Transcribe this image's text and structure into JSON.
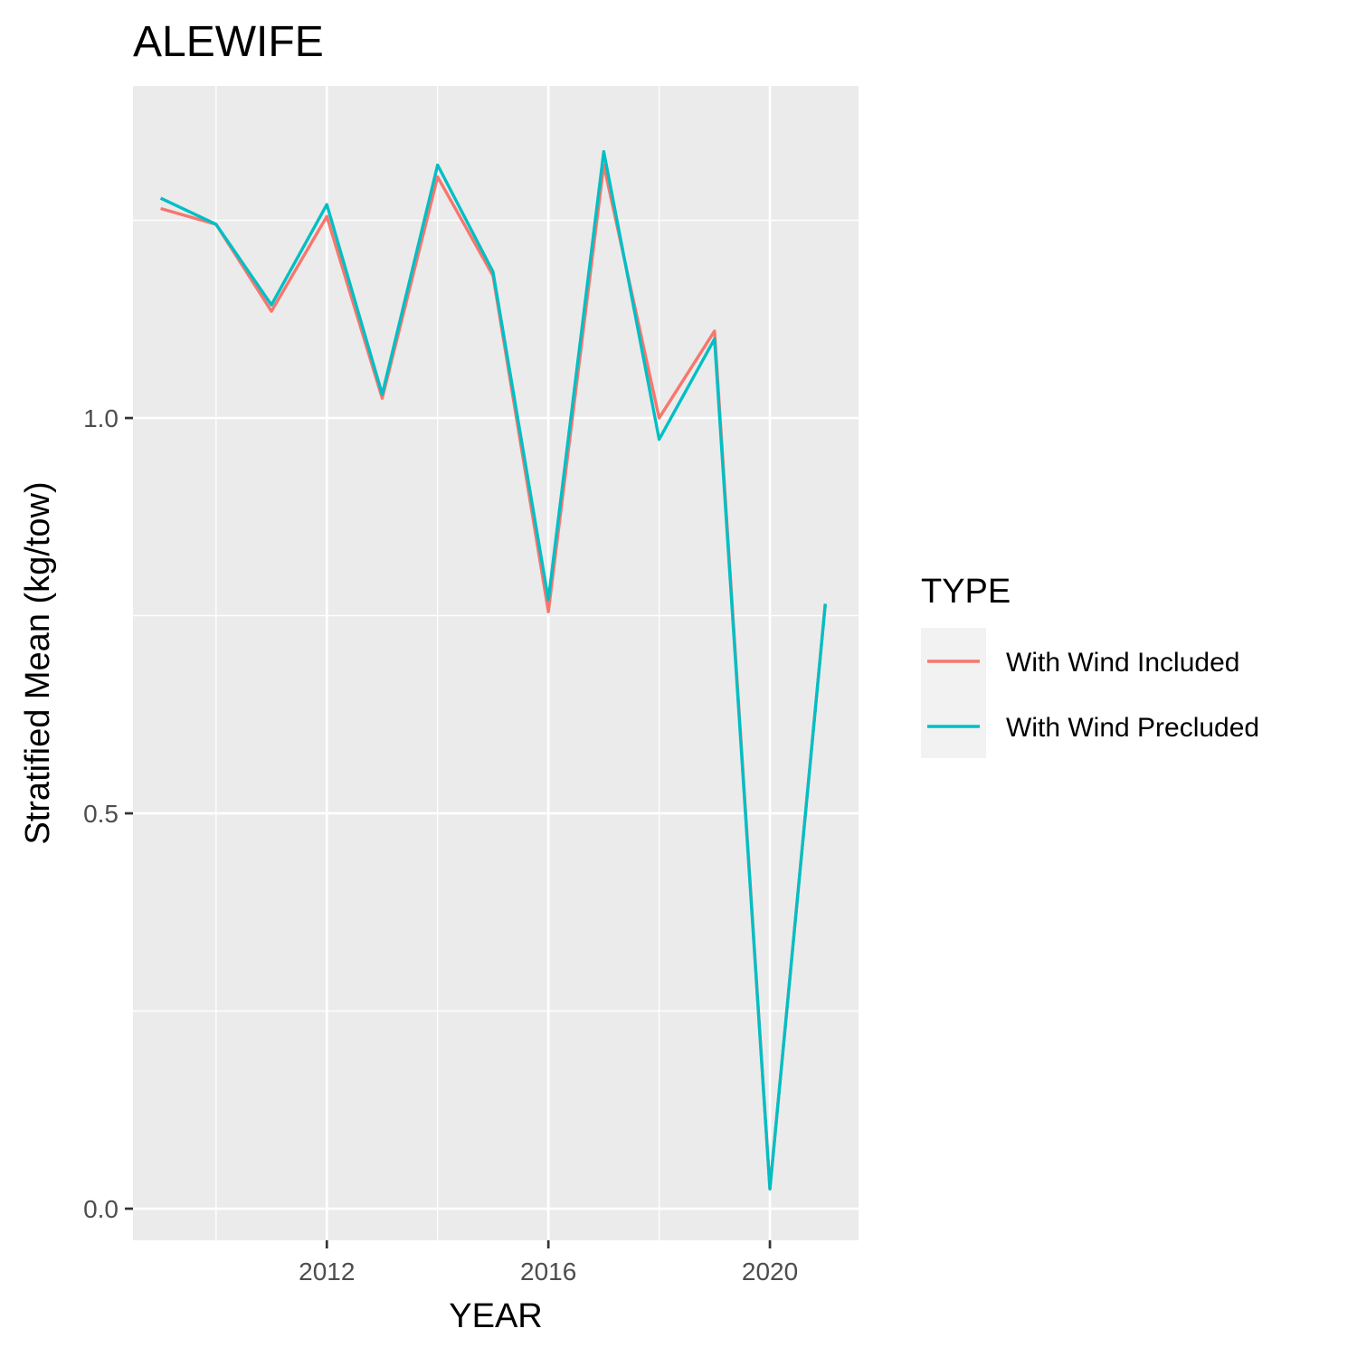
{
  "chart_data": {
    "type": "line",
    "title": "ALEWIFE",
    "xlabel": "YEAR",
    "ylabel": "Stratified Mean (kg/tow)",
    "x": [
      2009,
      2010,
      2011,
      2012,
      2013,
      2014,
      2015,
      2016,
      2017,
      2018,
      2019,
      2020,
      2021
    ],
    "xlim": [
      2008.5,
      2021.6
    ],
    "ylim": [
      -0.04,
      1.42
    ],
    "x_ticks": [
      2012,
      2016,
      2020
    ],
    "x_tick_labels": [
      "2012",
      "2016",
      "2020"
    ],
    "y_ticks": [
      0.0,
      0.5,
      1.0
    ],
    "y_tick_labels": [
      "0.0",
      "0.5",
      "1.0"
    ],
    "grid": true,
    "legend": {
      "title": "TYPE",
      "position": "right"
    },
    "series": [
      {
        "name": "With Wind Included",
        "color": "#F8766D",
        "values": [
          1.265,
          1.245,
          1.135,
          1.255,
          1.025,
          1.305,
          1.18,
          0.755,
          1.32,
          1.0,
          1.11,
          0.025,
          0.765
        ]
      },
      {
        "name": "With Wind Precluded",
        "color": "#00BFC4",
        "values": [
          1.278,
          1.245,
          1.143,
          1.27,
          1.03,
          1.32,
          1.185,
          0.77,
          1.337,
          0.973,
          1.1,
          0.025,
          0.765
        ]
      }
    ]
  }
}
